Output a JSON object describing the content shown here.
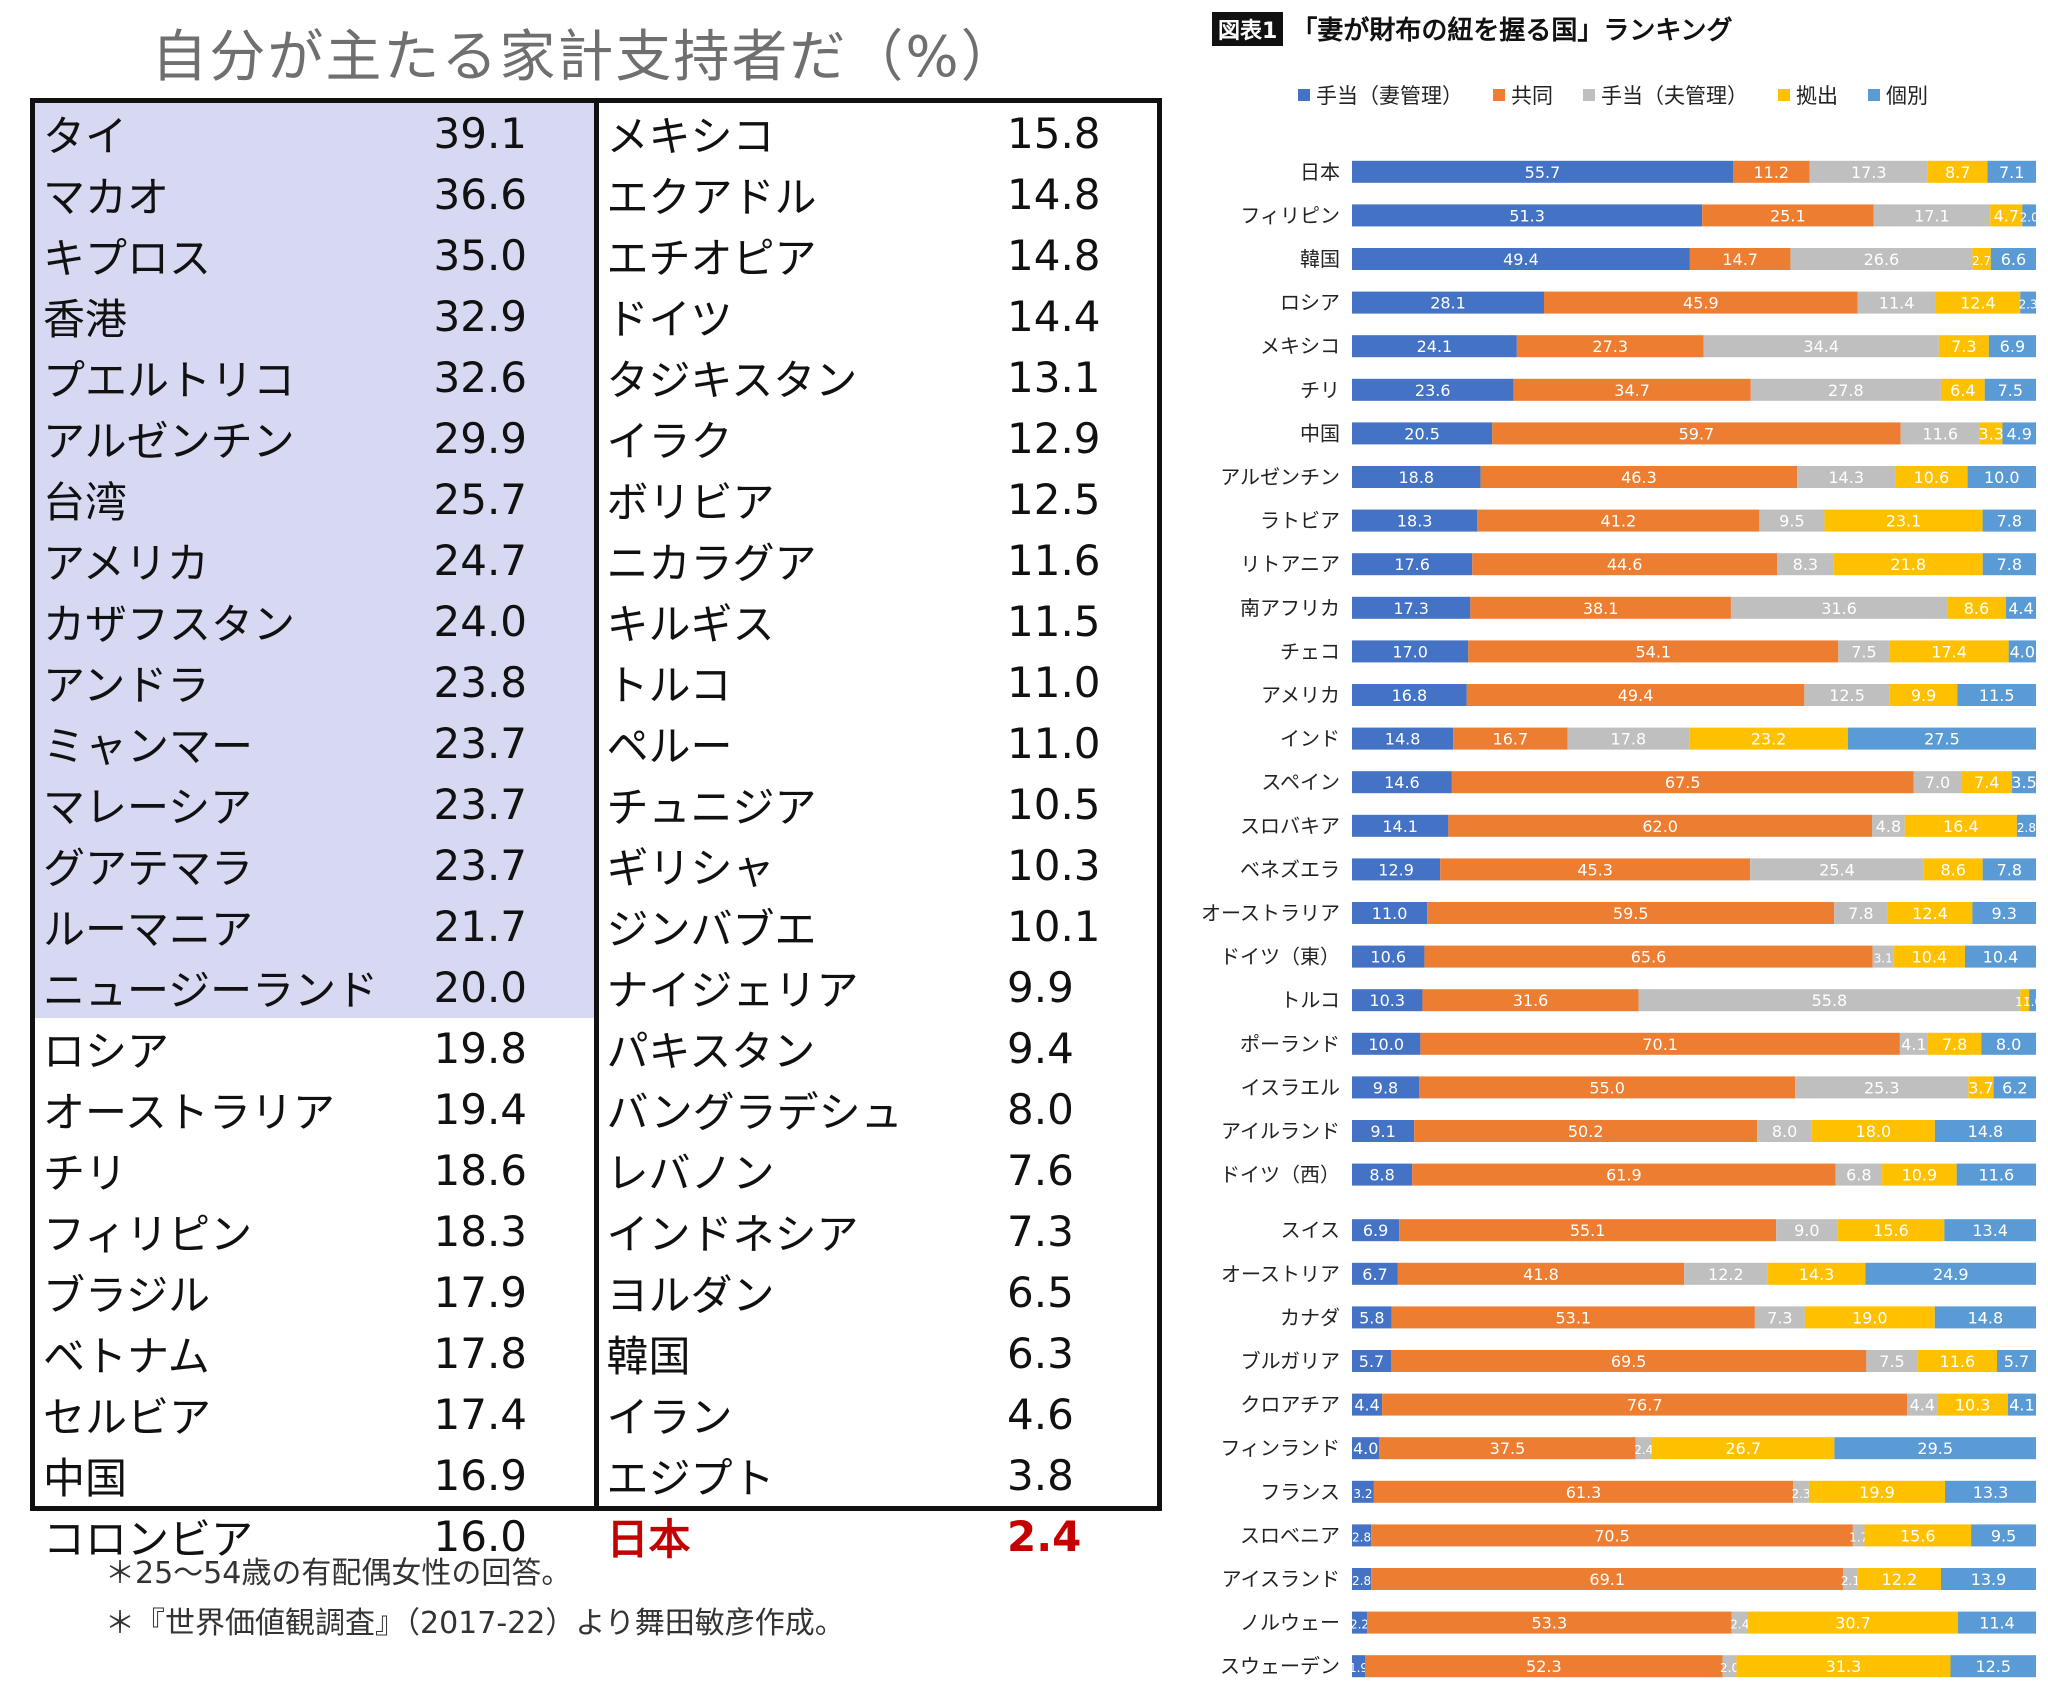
{
  "left": {
    "title": "自分が主たる家計支持者だ（%）",
    "rows": [
      {
        "name": "タイ",
        "value": "39.1"
      },
      {
        "name": "マカオ",
        "value": "36.6"
      },
      {
        "name": "キプロス",
        "value": "35.0"
      },
      {
        "name": "香港",
        "value": "32.9"
      },
      {
        "name": "プエルトリコ",
        "value": "32.6"
      },
      {
        "name": "アルゼンチン",
        "value": "29.9"
      },
      {
        "name": "台湾",
        "value": "25.7"
      },
      {
        "name": "アメリカ",
        "value": "24.7"
      },
      {
        "name": "カザフスタン",
        "value": "24.0"
      },
      {
        "name": "アンドラ",
        "value": "23.8"
      },
      {
        "name": "ミャンマー",
        "value": "23.7"
      },
      {
        "name": "マレーシア",
        "value": "23.7"
      },
      {
        "name": "グアテマラ",
        "value": "23.7"
      },
      {
        "name": "ルーマニア",
        "value": "21.7"
      },
      {
        "name": "ニュージーランド",
        "value": "20.0"
      },
      {
        "name": "ロシア",
        "value": "19.8"
      },
      {
        "name": "オーストラリア",
        "value": "19.4"
      },
      {
        "name": "チリ",
        "value": "18.6"
      },
      {
        "name": "フィリピン",
        "value": "18.3"
      },
      {
        "name": "ブラジル",
        "value": "17.9"
      },
      {
        "name": "ベトナム",
        "value": "17.8"
      },
      {
        "name": "セルビア",
        "value": "17.4"
      },
      {
        "name": "中国",
        "value": "16.9"
      },
      {
        "name": "コロンビア",
        "value": "16.0"
      },
      {
        "name": "メキシコ",
        "value": "15.8"
      },
      {
        "name": "エクアドル",
        "value": "14.8"
      },
      {
        "name": "エチオピア",
        "value": "14.8"
      },
      {
        "name": "ドイツ",
        "value": "14.4"
      },
      {
        "name": "タジキスタン",
        "value": "13.1"
      },
      {
        "name": "イラク",
        "value": "12.9"
      },
      {
        "name": "ボリビア",
        "value": "12.5"
      },
      {
        "name": "ニカラグア",
        "value": "11.6"
      },
      {
        "name": "キルギス",
        "value": "11.5"
      },
      {
        "name": "トルコ",
        "value": "11.0"
      },
      {
        "name": "ペルー",
        "value": "11.0"
      },
      {
        "name": "チュニジア",
        "value": "10.5"
      },
      {
        "name": "ギリシャ",
        "value": "10.3"
      },
      {
        "name": "ジンバブエ",
        "value": "10.1"
      },
      {
        "name": "ナイジェリア",
        "value": "9.9"
      },
      {
        "name": "パキスタン",
        "value": "9.4"
      },
      {
        "name": "バングラデシュ",
        "value": "8.0"
      },
      {
        "name": "レバノン",
        "value": "7.6"
      },
      {
        "name": "インドネシア",
        "value": "7.3"
      },
      {
        "name": "ヨルダン",
        "value": "6.5"
      },
      {
        "name": "韓国",
        "value": "6.3"
      },
      {
        "name": "イラン",
        "value": "4.6"
      },
      {
        "name": "エジプト",
        "value": "3.8"
      },
      {
        "name": "日本",
        "value": "2.4"
      }
    ],
    "highlight_threshold": 20.0,
    "highlight_color": "#d6d9f1",
    "emphasis_country": "日本",
    "emphasis_color": "#c40000",
    "notes": [
      "＊25～54歳の有配偶女性の回答。",
      "＊『世界価値観調査』（2017-22）より舞田敏彦作成。"
    ]
  },
  "chart_title": {
    "badge": "図表1",
    "text": "「妻が財布の紐を握る国」ランキング"
  },
  "chart_data": {
    "type": "bar",
    "orientation": "horizontal",
    "stacked": "percent",
    "categories": [
      "日本",
      "フィリピン",
      "韓国",
      "ロシア",
      "メキシコ",
      "チリ",
      "中国",
      "アルゼンチン",
      "ラトビア",
      "リトアニア",
      "南アフリカ",
      "チェコ",
      "アメリカ",
      "インド",
      "スペイン",
      "スロバキア",
      "ベネズエラ",
      "オーストラリア",
      "ドイツ（東）",
      "トルコ",
      "ポーランド",
      "イスラエル",
      "アイルランド",
      "ドイツ（西）",
      "スイス",
      "オーストリア",
      "カナダ",
      "ブルガリア",
      "クロアチア",
      "フィンランド",
      "フランス",
      "スロベニア",
      "アイスランド",
      "ノルウェー",
      "スウェーデン"
    ],
    "series": [
      {
        "name": "手当（妻管理）",
        "color": "#4472c4",
        "values": [
          55.7,
          51.3,
          49.4,
          28.1,
          24.1,
          23.6,
          20.5,
          18.8,
          18.3,
          17.6,
          17.3,
          17.0,
          16.8,
          14.8,
          14.6,
          14.1,
          12.9,
          11.0,
          10.6,
          10.3,
          10.0,
          9.8,
          9.1,
          8.8,
          6.9,
          6.7,
          5.8,
          5.7,
          4.4,
          4.0,
          3.2,
          2.8,
          2.8,
          2.2,
          1.9
        ]
      },
      {
        "name": "共同",
        "color": "#ed7d31",
        "values": [
          11.2,
          25.1,
          14.7,
          45.9,
          27.3,
          34.7,
          59.7,
          46.3,
          41.2,
          44.6,
          38.1,
          54.1,
          49.4,
          16.7,
          67.5,
          62.0,
          45.3,
          59.5,
          65.6,
          31.6,
          70.1,
          55.0,
          50.2,
          61.9,
          55.1,
          41.8,
          53.1,
          69.5,
          76.7,
          37.5,
          61.3,
          70.5,
          69.1,
          53.3,
          52.3
        ]
      },
      {
        "name": "手当（夫管理）",
        "color": "#bfbfbf",
        "values": [
          17.3,
          17.1,
          26.6,
          11.4,
          34.4,
          27.8,
          11.6,
          14.3,
          9.5,
          8.3,
          31.6,
          7.5,
          12.5,
          17.8,
          7.0,
          4.8,
          25.4,
          7.8,
          3.1,
          55.8,
          4.1,
          25.3,
          8.0,
          6.8,
          9.0,
          12.2,
          7.3,
          7.5,
          4.4,
          2.4,
          2.3,
          1.7,
          2.1,
          2.4,
          2.0
        ]
      },
      {
        "name": "拠出",
        "color": "#ffc000",
        "values": [
          8.7,
          4.7,
          2.7,
          12.4,
          7.3,
          6.4,
          3.3,
          10.6,
          23.1,
          21.8,
          8.6,
          17.4,
          9.9,
          23.2,
          7.4,
          16.4,
          8.6,
          12.4,
          10.4,
          1.3,
          7.8,
          3.7,
          18.0,
          10.9,
          15.6,
          14.3,
          19.0,
          11.6,
          10.3,
          26.7,
          19.9,
          15.6,
          12.2,
          30.7,
          31.3
        ]
      },
      {
        "name": "個別",
        "color": "#5b9bd5",
        "values": [
          7.1,
          2.0,
          6.6,
          2.3,
          6.9,
          7.5,
          4.9,
          10.0,
          7.8,
          7.8,
          4.4,
          4.0,
          11.5,
          27.5,
          3.5,
          2.8,
          7.8,
          9.3,
          10.4,
          1.0,
          8.0,
          6.2,
          14.8,
          11.6,
          13.4,
          24.9,
          14.8,
          5.7,
          4.1,
          29.5,
          13.3,
          9.5,
          13.9,
          11.4,
          12.5
        ]
      }
    ],
    "xlim": [
      0,
      100
    ],
    "value_labels": true,
    "legend": "top",
    "grid": false
  }
}
